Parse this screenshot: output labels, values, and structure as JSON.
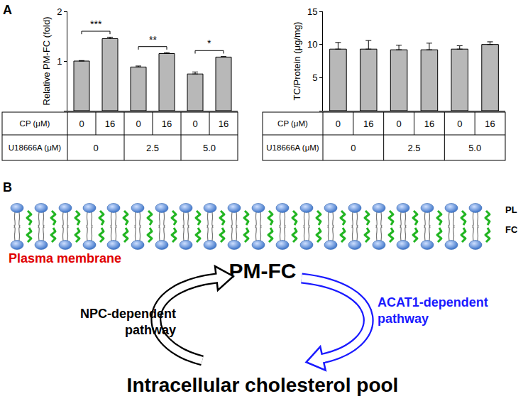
{
  "panel_labels": [
    "A",
    "B"
  ],
  "chart_data": [
    {
      "type": "bar",
      "y_label": "Relative PM-FC (fold)",
      "values": [
        1.0,
        1.45,
        0.88,
        1.15,
        0.74,
        1.08
      ],
      "errors": [
        0.01,
        0.03,
        0.02,
        0.02,
        0.04,
        0.01
      ],
      "ylim": [
        0,
        2
      ],
      "yticks": [
        0,
        1,
        2
      ],
      "grid": false,
      "tick_labels": "y",
      "color": "#b8b8b8",
      "significance": [
        {
          "bars": [
            0,
            1
          ],
          "label": "***"
        },
        {
          "bars": [
            2,
            3
          ],
          "label": "**"
        },
        {
          "bars": [
            4,
            5
          ],
          "label": "*"
        }
      ],
      "table": {
        "rows": [
          {
            "label": "CP (μM)",
            "cells": [
              "0",
              "16",
              "0",
              "16",
              "0",
              "16"
            ]
          },
          {
            "label": "U18666A (μM)",
            "cells": [
              "0",
              "2.5",
              "5.0"
            ]
          }
        ]
      }
    },
    {
      "type": "bar",
      "y_label": "TC/Protein (μg/mg)",
      "values": [
        9.3,
        9.3,
        9.2,
        9.2,
        9.3,
        10.0
      ],
      "errors": [
        1.0,
        1.3,
        0.7,
        1.0,
        0.5,
        0.4
      ],
      "ylim": [
        0,
        15
      ],
      "yticks": [
        0,
        5,
        10,
        15
      ],
      "grid": false,
      "tick_labels": "y",
      "color": "#b8b8b8",
      "table": {
        "rows": [
          {
            "label": "CP (μM)",
            "cells": [
              "0",
              "16",
              "0",
              "16",
              "0",
              "16"
            ]
          },
          {
            "label": "U18666A (μM)",
            "cells": [
              "0",
              "2.5",
              "5.0"
            ]
          }
        ]
      }
    }
  ],
  "diagram": {
    "layer_labels": [
      "PL",
      "FC"
    ],
    "membrane_label": "Plasma membrane",
    "center": "PM-FC",
    "left_pathway": [
      "NPC-dependent",
      "pathway"
    ],
    "right_pathway": [
      "ACAT1-dependent",
      "pathway"
    ],
    "pool": "Intracellular cholesterol pool"
  }
}
